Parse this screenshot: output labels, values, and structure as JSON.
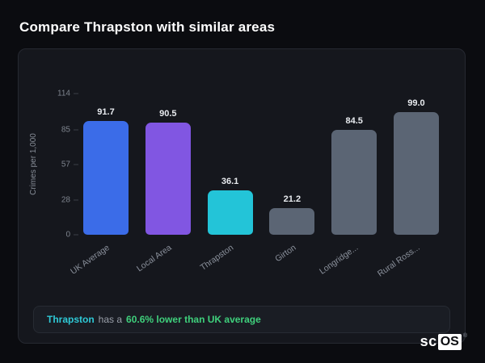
{
  "page_title": "Compare Thrapston with similar areas",
  "chart_data": {
    "type": "bar",
    "categories": [
      "UK Average",
      "Local Area",
      "Thrapston",
      "Girton",
      "Longridge...",
      "Rural Ross..."
    ],
    "values": [
      91.7,
      90.5,
      36.1,
      21.2,
      84.5,
      99.0
    ],
    "bar_colors": [
      "#3b6ce8",
      "#8156e2",
      "#23c4d8",
      "#5b6574",
      "#5b6574",
      "#5b6574"
    ],
    "title": "Compare Thrapston with similar areas",
    "xlabel": "",
    "ylabel": "Crimes per 1,000",
    "yticks": [
      0,
      28,
      57,
      85,
      114
    ],
    "ylim": [
      0,
      114
    ],
    "grid": false,
    "legend": false
  },
  "footer": {
    "subject": "Thrapston",
    "middle": "has a",
    "highlight": "60.6% lower than UK average"
  },
  "logo": {
    "prefix": "sc",
    "suffix": "OS",
    "registered": "®"
  },
  "colors": {
    "background": "#0b0c10",
    "card_background": "#15171d",
    "accent_blue": "#3b6ce8",
    "accent_purple": "#8156e2",
    "accent_cyan": "#23c4d8",
    "neutral_bar": "#5b6574",
    "highlight_green": "#3fd07c",
    "highlight_cyan": "#2ec9d6"
  }
}
